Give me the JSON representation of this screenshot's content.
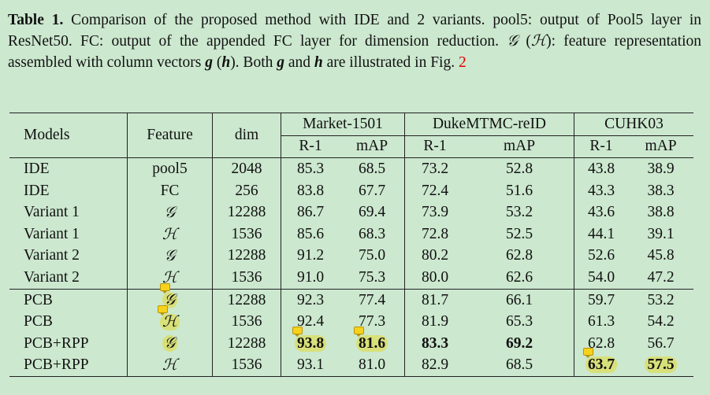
{
  "caption": {
    "label": "Table 1.",
    "part1": " Comparison of the proposed method with IDE and 2 variants. pool5: output of Pool5 layer in ResNet50. FC: output of the appended FC layer for dimension reduction. ",
    "sym_g": "𝒢",
    "part2": " (",
    "sym_h": "ℋ",
    "part3": "): feature representation assembled with column vectors ",
    "vec_g": "g",
    "part4": " (",
    "vec_h": "h",
    "part5": "). Both ",
    "vec_g2": "g",
    "part6": " and ",
    "vec_h2": "h",
    "part7": " are illustrated in Fig. ",
    "fig_ref": "2"
  },
  "table": {
    "headers": {
      "models": "Models",
      "feature": "Feature",
      "dim": "dim",
      "market": "Market-1501",
      "duke": "DukeMTMC-reID",
      "cuhk": "CUHK03",
      "r1": "R-1",
      "map": "mAP"
    },
    "rows": [
      [
        "IDE",
        "pool5",
        "2048",
        "85.3",
        "68.5",
        "73.2",
        "52.8",
        "43.8",
        "38.9"
      ],
      [
        "IDE",
        "FC",
        "256",
        "83.8",
        "67.7",
        "72.4",
        "51.6",
        "43.3",
        "38.3"
      ],
      [
        "Variant 1",
        "𝒢",
        "12288",
        "86.7",
        "69.4",
        "73.9",
        "53.2",
        "43.6",
        "38.8"
      ],
      [
        "Variant 1",
        "ℋ",
        "1536",
        "85.6",
        "68.3",
        "72.8",
        "52.5",
        "44.1",
        "39.1"
      ],
      [
        "Variant 2",
        "𝒢",
        "12288",
        "91.2",
        "75.0",
        "80.2",
        "62.8",
        "52.6",
        "45.8"
      ],
      [
        "Variant 2",
        "ℋ",
        "1536",
        "91.0",
        "75.3",
        "80.0",
        "62.6",
        "54.0",
        "47.2"
      ],
      [
        "PCB",
        "𝒢",
        "12288",
        "92.3",
        "77.4",
        "81.7",
        "66.1",
        "59.7",
        "53.2"
      ],
      [
        "PCB",
        "ℋ",
        "1536",
        "92.4",
        "77.3",
        "81.9",
        "65.3",
        "61.3",
        "54.2"
      ],
      [
        "PCB+RPP",
        "𝒢",
        "12288",
        "93.8",
        "81.6",
        "83.3",
        "69.2",
        "62.8",
        "56.7"
      ],
      [
        "PCB+RPP",
        "ℋ",
        "1536",
        "93.1",
        "81.0",
        "82.9",
        "68.5",
        "63.7",
        "57.5"
      ]
    ]
  }
}
